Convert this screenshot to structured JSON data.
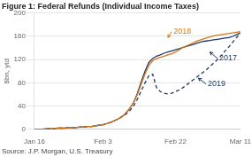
{
  "chart_data": {
    "type": "line",
    "title": "Figure 1: Federal Refunds (Individual Income Taxes)",
    "ylabel": "$bn, ytd",
    "source": "Source: J.P. Morgan, U.S. Treasury",
    "xlim": [
      0,
      54
    ],
    "xticks": [
      {
        "value": 0,
        "label": "Jan 16"
      },
      {
        "value": 18,
        "label": "Feb 3"
      },
      {
        "value": 37,
        "label": "Feb 22"
      },
      {
        "value": 54,
        "label": "Mar 11"
      }
    ],
    "ylim": [
      0,
      200
    ],
    "yticks": [
      0,
      40,
      80,
      120,
      160,
      200
    ],
    "grid": true,
    "x": [
      0,
      1,
      2,
      3,
      4,
      5,
      6,
      7,
      8,
      9,
      10,
      11,
      12,
      13,
      14,
      15,
      16,
      17,
      18,
      19,
      20,
      21,
      22,
      23,
      24,
      25,
      26,
      27,
      28,
      29,
      30,
      31,
      32,
      33,
      34,
      35,
      36,
      37,
      38,
      39,
      40,
      41,
      42,
      43,
      44,
      45,
      46,
      47,
      48,
      49,
      50,
      51,
      52,
      53,
      54
    ],
    "series": [
      {
        "color": "#D4781A",
        "line_style": "solid",
        "values": [
          0,
          0,
          0,
          1,
          1,
          1,
          2,
          2,
          2,
          3,
          3,
          3,
          4,
          4,
          5,
          5,
          6,
          7,
          8,
          10,
          12,
          15,
          18,
          22,
          28,
          36,
          46,
          60,
          78,
          95,
          110,
          118,
          122,
          124,
          126,
          128,
          130,
          133,
          137,
          141,
          144,
          147,
          150,
          153,
          155,
          157,
          159,
          161,
          162,
          163,
          164,
          165,
          166,
          167,
          168
        ]
      },
      {
        "color": "#1E3864",
        "line_style": "solid",
        "values": [
          0,
          0,
          0,
          1,
          1,
          1,
          2,
          2,
          2,
          3,
          3,
          3,
          4,
          4,
          5,
          5,
          6,
          7,
          8,
          10,
          12,
          15,
          18,
          22,
          28,
          36,
          46,
          62,
          82,
          100,
          115,
          122,
          126,
          128,
          131,
          133,
          135,
          137,
          139,
          141,
          143,
          145,
          147,
          149,
          151,
          152,
          153,
          154,
          155,
          156,
          157,
          158,
          160,
          163,
          166
        ]
      },
      {
        "color": "#1E3864",
        "line_style": "dashed",
        "values": [
          0,
          0,
          0,
          1,
          1,
          1,
          2,
          2,
          2,
          3,
          3,
          3,
          4,
          4,
          5,
          5,
          6,
          7,
          8,
          10,
          12,
          15,
          18,
          22,
          26,
          32,
          40,
          52,
          66,
          80,
          92,
          95,
          72,
          65,
          62,
          61,
          62,
          65,
          68,
          72,
          77,
          82,
          87,
          92,
          97,
          102,
          108,
          114,
          120,
          127,
          135,
          142,
          150,
          158,
          165
        ]
      }
    ],
    "annotations": [
      {
        "text": "2018",
        "x": 36,
        "y": 168,
        "arrow_x": 35,
        "arrow_y": 158,
        "color": "#D4781A"
      },
      {
        "text": "2017",
        "x": 48,
        "y": 122,
        "arrow_x": 46,
        "arrow_y": 133,
        "color": "#1E3864"
      },
      {
        "text": "2019",
        "x": 45,
        "y": 78,
        "arrow_x": 43,
        "arrow_y": 88,
        "color": "#1E3864"
      }
    ]
  }
}
